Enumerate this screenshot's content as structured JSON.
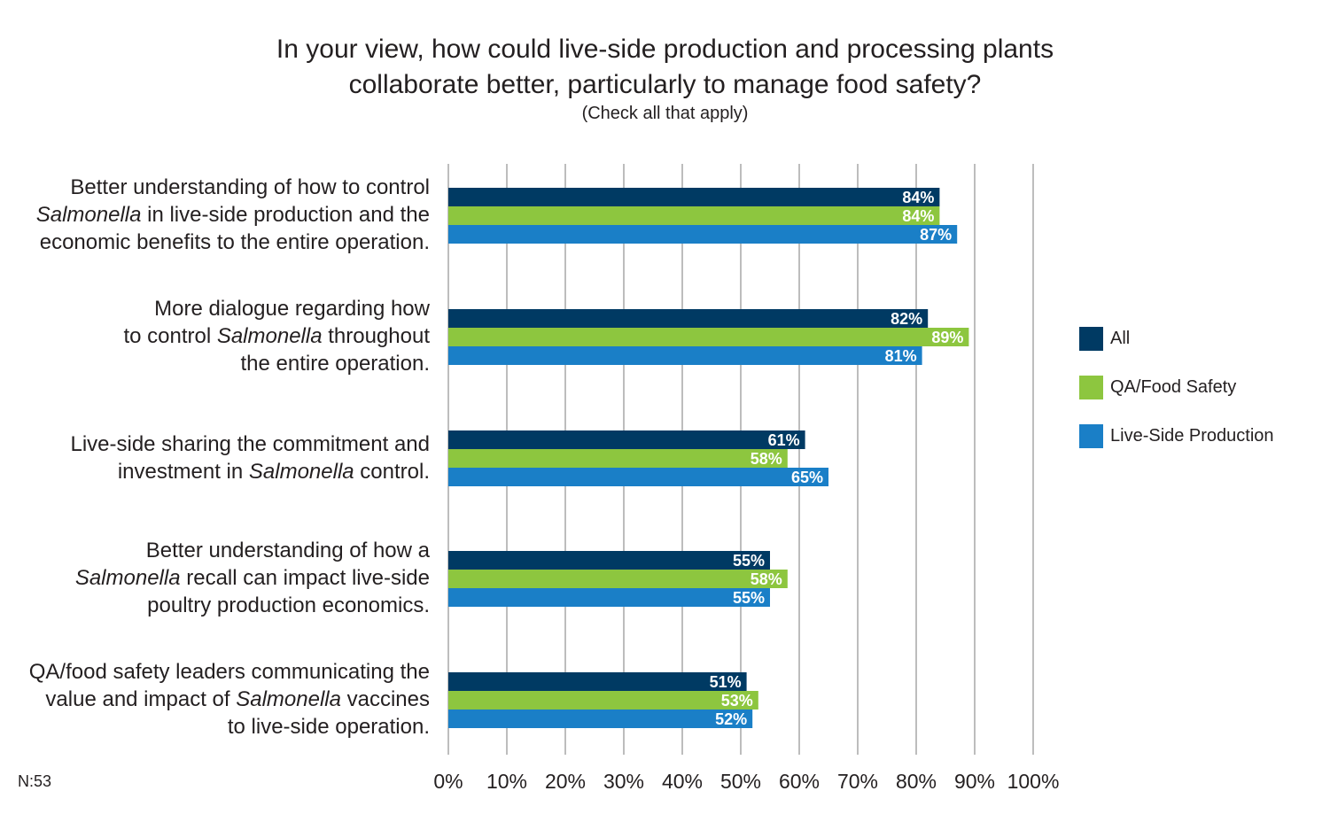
{
  "chart_data": {
    "type": "bar",
    "orientation": "horizontal",
    "title_lines": [
      "In your view, how could live-side production and processing plants",
      "collaborate better, particularly to manage food safety?"
    ],
    "subtitle": "(Check all that apply)",
    "categories": [
      [
        "Better understanding of how to control",
        "Salmonella in live-side production and the",
        "economic benefits to the entire operation."
      ],
      [
        "More dialogue regarding how",
        "to control Salmonella throughout",
        "the entire operation."
      ],
      [
        "Live-side sharing the commitment and",
        "investment in Salmonella control."
      ],
      [
        "Better understanding of how a",
        "Salmonella recall can impact live-side",
        "poultry production economics."
      ],
      [
        "QA/food safety leaders communicating the",
        "value and impact of Salmonella vaccines",
        "to live-side operation."
      ]
    ],
    "series": [
      {
        "name": "All",
        "color": "#003a63",
        "values": [
          84,
          82,
          61,
          55,
          51
        ]
      },
      {
        "name": "QA/Food Safety",
        "color": "#8dc63f",
        "values": [
          84,
          89,
          58,
          58,
          53
        ]
      },
      {
        "name": "Live-Side Production",
        "color": "#1a7fc7",
        "values": [
          87,
          81,
          65,
          55,
          52
        ]
      }
    ],
    "xlim": [
      0,
      100
    ],
    "x_ticks": [
      "0%",
      "10%",
      "20%",
      "30%",
      "40%",
      "50%",
      "60%",
      "70%",
      "80%",
      "90%",
      "100%"
    ],
    "grid": true,
    "legend": "right",
    "value_suffix": "%"
  },
  "note": "N:53"
}
